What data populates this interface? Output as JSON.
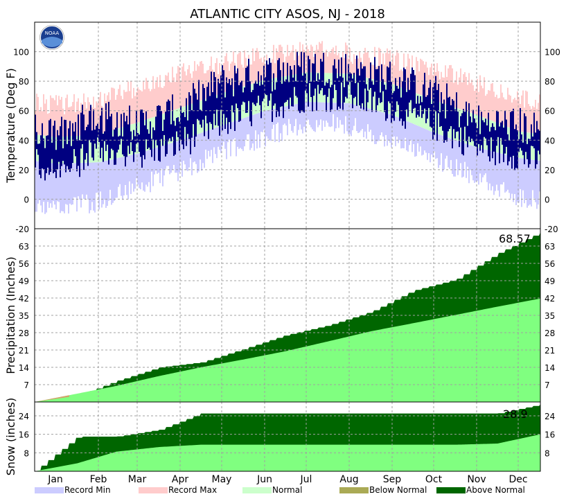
{
  "title": "ATLANTIC CITY  ASOS, NJ - 2018",
  "logo_text": "NOAA",
  "months": [
    "Jan",
    "Feb",
    "Mar",
    "Apr",
    "May",
    "Jun",
    "Jul",
    "Aug",
    "Sep",
    "Oct",
    "Nov",
    "Dec"
  ],
  "colors": {
    "record_min": "#ccccff",
    "record_max": "#ffcccc",
    "normal": "#ccffcc",
    "observed_temp": "#000080",
    "normal_precip": "#80ff80",
    "above_normal": "#006600",
    "below_normal": "#aaaa55",
    "grid": "#a0a0a0"
  },
  "legend": [
    {
      "label": "Record Min",
      "color": "#ccccff"
    },
    {
      "label": "Record Max",
      "color": "#ffcccc"
    },
    {
      "label": "Normal",
      "color": "#ccffcc"
    },
    {
      "label": "Below Normal",
      "color": "#aaaa55"
    },
    {
      "label": "Above Normal",
      "color": "#006600"
    }
  ],
  "chart_data": [
    {
      "type": "area",
      "ylabel": "Temperature (Deg F)",
      "ylim": [
        -20,
        120
      ],
      "yticks": [
        -20,
        0,
        20,
        40,
        60,
        80,
        100
      ],
      "grid": true,
      "record_max_monthly": [
        64,
        66,
        76,
        86,
        92,
        97,
        101,
        99,
        95,
        88,
        78,
        68
      ],
      "record_min_monthly": [
        -5,
        -2,
        8,
        20,
        32,
        42,
        52,
        50,
        40,
        28,
        15,
        2
      ],
      "normal_high_monthly": [
        42,
        44,
        52,
        62,
        72,
        81,
        86,
        85,
        78,
        67,
        57,
        46
      ],
      "normal_low_monthly": [
        24,
        25,
        31,
        40,
        50,
        60,
        66,
        65,
        57,
        45,
        35,
        28
      ],
      "observed_high_monthly": [
        42,
        58,
        50,
        60,
        80,
        85,
        90,
        88,
        82,
        72,
        52,
        50
      ],
      "observed_low_monthly": [
        18,
        32,
        30,
        38,
        52,
        62,
        70,
        70,
        62,
        50,
        36,
        30
      ]
    },
    {
      "type": "area",
      "ylabel": "Precipitation (Inches)",
      "ylim": [
        0,
        70
      ],
      "yticks": [
        7,
        14,
        21,
        28,
        35,
        42,
        49,
        56,
        63
      ],
      "grid": true,
      "total_label": "68.57",
      "normal_cumulative_month_end": [
        3.4,
        6.5,
        10.5,
        14.0,
        17.2,
        20.5,
        24.5,
        28.6,
        31.8,
        35.2,
        38.5,
        41.8
      ],
      "observed_cumulative_month_end": [
        2.4,
        8.5,
        14.0,
        16.0,
        21.5,
        27.0,
        31.0,
        36.5,
        45.0,
        49.5,
        60.0,
        68.57
      ]
    },
    {
      "type": "area",
      "ylabel": "Snow (inches)",
      "ylim": [
        0,
        30
      ],
      "yticks": [
        8,
        16,
        24
      ],
      "grid": true,
      "total_label": "28.9",
      "normal_cumulative_month_end": [
        3.5,
        8.5,
        10.5,
        11.5,
        11.5,
        11.5,
        11.5,
        11.5,
        11.5,
        11.5,
        12.0,
        16.0
      ],
      "observed_cumulative_month_end": [
        15.0,
        15.0,
        18.0,
        25.0,
        25.0,
        25.0,
        25.0,
        25.0,
        25.0,
        25.0,
        25.0,
        28.9
      ]
    }
  ]
}
